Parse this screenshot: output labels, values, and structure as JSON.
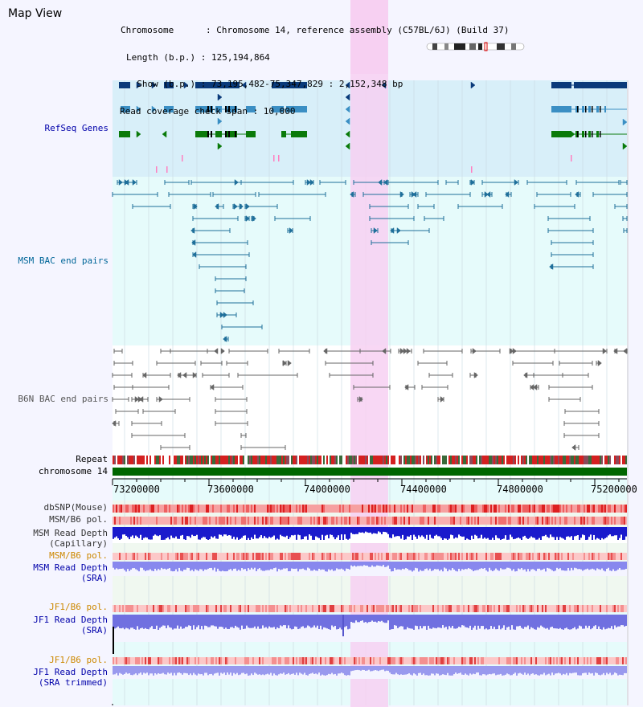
{
  "title": "Map View",
  "info": {
    "chromosome": "Chromosome      : Chromosome 14, reference assembly (C57BL/6J) (Build 37)",
    "length": "Length (b.p.) : 125,194,864",
    "show": "  Show (b.p.) : 73,195,482-75,347,829 : 2,152,348 bp",
    "span": "Read coverage check span : 10,000"
  },
  "tracks": {
    "refseq": "RefSeq Genes",
    "msm_bac": "MSM BAC end pairs",
    "b6n_bac": "B6N BAC end pairs",
    "repeat": "Repeat",
    "chromosome": "chromosome 14",
    "dbsnp": "dbSNP(Mouse)",
    "msm_b6_pol_1": "MSM/B6 pol.",
    "msm_depth_cap": "MSM Read Depth",
    "msm_depth_cap_sub": "(Capillary)",
    "msm_b6_pol_2": "MSM/B6 pol.",
    "msm_depth_sra": "MSM Read Depth",
    "msm_depth_sra_sub": "(SRA)",
    "jf1_b6_pol_1": "JF1/B6 pol.",
    "jf1_depth_sra": "JF1 Read Depth",
    "jf1_depth_sra_sub": "(SRA)",
    "jf1_b6_pol_2": "JF1/B6 pol.",
    "jf1_depth_trim": "JF1 Read Depth",
    "jf1_depth_trim_sub": "(SRA trimmed)"
  },
  "axis": {
    "ticks": [
      "73200000",
      "73600000",
      "74000000",
      "74400000",
      "74800000",
      "75200000"
    ]
  },
  "colors": {
    "refseq_label": "#0000aa",
    "msm_label": "#006699",
    "b6n_label": "#555555",
    "pol_orange": "#cc8800",
    "depth_blue": "#0000aa",
    "highlight": "#f7d0f2"
  }
}
